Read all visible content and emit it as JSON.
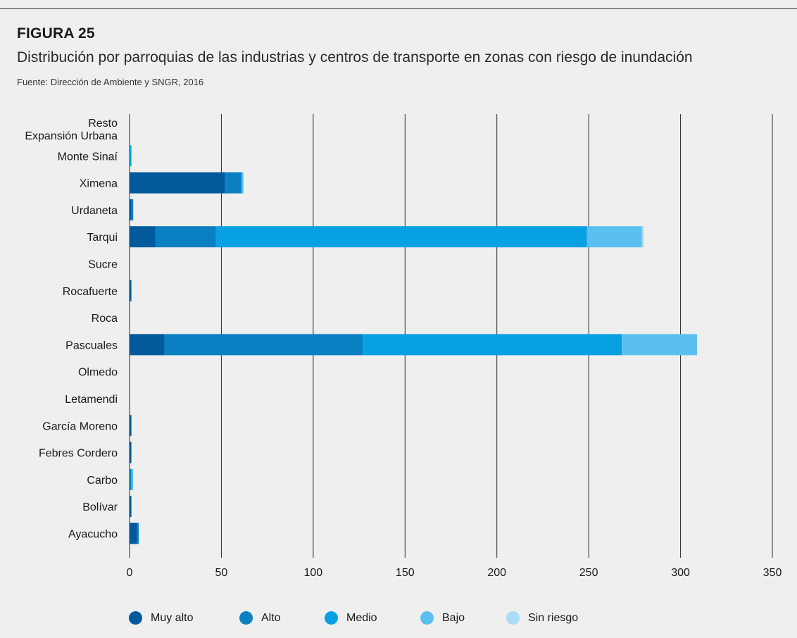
{
  "figure": {
    "label": "FIGURA 25",
    "title": "Distribución por parroquias de las industrias y centros de transporte en zonas con riesgo de inundación",
    "source": "Fuente: Dirección de Ambiente y SNGR, 2016"
  },
  "chart_data": {
    "type": "bar",
    "orientation": "horizontal",
    "stacked": true,
    "categories": [
      [
        "Resto",
        "Expansión Urbana"
      ],
      [
        "Monte Sinaí"
      ],
      [
        "Ximena"
      ],
      [
        "Urdaneta"
      ],
      [
        "Tarqui"
      ],
      [
        "Sucre"
      ],
      [
        "Rocafuerte"
      ],
      [
        "Roca"
      ],
      [
        "Pascuales"
      ],
      [
        "Olmedo"
      ],
      [
        "Letamendi"
      ],
      [
        "García Moreno"
      ],
      [
        "Febres Cordero"
      ],
      [
        "Carbo"
      ],
      [
        "Bolívar"
      ],
      [
        "Ayacucho"
      ]
    ],
    "series": [
      {
        "name": "Muy alto",
        "color": "#005a9c",
        "values": [
          0,
          0,
          52,
          1,
          14,
          0,
          1,
          0,
          19,
          0,
          0,
          1,
          1,
          0,
          1,
          4
        ]
      },
      {
        "name": "Alto",
        "color": "#0a7fc1",
        "values": [
          0,
          0,
          9,
          1,
          33,
          0,
          0,
          0,
          108,
          0,
          0,
          0,
          0,
          1,
          0,
          1
        ]
      },
      {
        "name": "Medio",
        "color": "#07a0e2",
        "values": [
          0,
          1,
          0,
          0,
          202,
          0,
          0,
          0,
          141,
          0,
          0,
          0,
          0,
          0,
          0,
          0
        ]
      },
      {
        "name": "Bajo",
        "color": "#5bc0ef",
        "values": [
          0,
          0,
          1,
          0,
          30,
          0,
          0,
          0,
          41,
          0,
          0,
          0,
          0,
          1,
          0,
          0
        ]
      },
      {
        "name": "Sin riesgo",
        "color": "#aadcf5",
        "values": [
          0,
          0,
          0,
          0,
          1,
          0,
          0,
          0,
          0,
          0,
          0,
          0,
          0,
          0,
          0,
          0
        ]
      }
    ],
    "xlim": [
      0,
      350
    ],
    "xticks": [
      0,
      50,
      100,
      150,
      200,
      250,
      300,
      350
    ],
    "grid": true,
    "legend_position": "bottom"
  }
}
